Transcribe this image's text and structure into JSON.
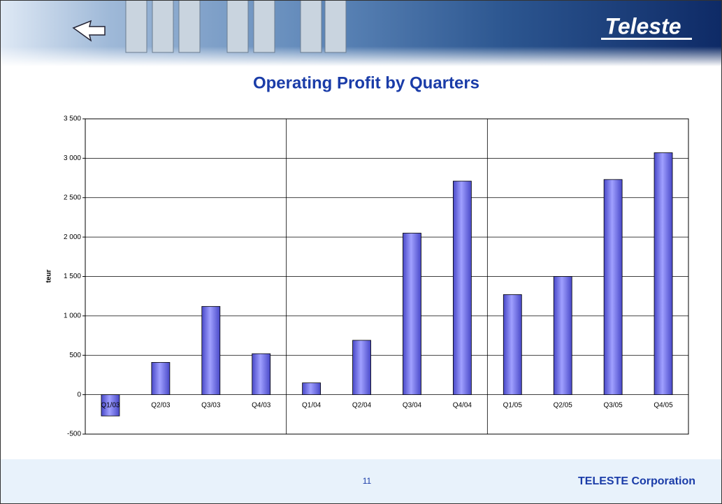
{
  "header": {
    "logo": "Teleste"
  },
  "chart_data": {
    "type": "bar",
    "title": "Operating Profit by Quarters",
    "ylabel": "teur",
    "categories": [
      "Q1/03",
      "Q2/03",
      "Q3/03",
      "Q4/03",
      "Q1/04",
      "Q2/04",
      "Q3/04",
      "Q4/04",
      "Q1/05",
      "Q2/05",
      "Q3/05",
      "Q4/05"
    ],
    "values": [
      -270,
      410,
      1120,
      520,
      150,
      690,
      2050,
      2710,
      1270,
      1500,
      2730,
      3070
    ],
    "color": "#7b7bef",
    "ylim": [
      -500,
      3500
    ],
    "yticks": [
      -500,
      0,
      500,
      {
        "value": 1000,
        "label": "1 000"
      },
      {
        "value": 1500,
        "label": "1 500"
      },
      {
        "value": 2000,
        "label": "2 000"
      },
      {
        "value": 2500,
        "label": "2 500"
      },
      {
        "value": 3000,
        "label": "3 000"
      },
      {
        "value": 3500,
        "label": "3 500"
      }
    ],
    "grid": true
  },
  "footer": {
    "page": 11,
    "company": "TELESTE Corporation"
  }
}
